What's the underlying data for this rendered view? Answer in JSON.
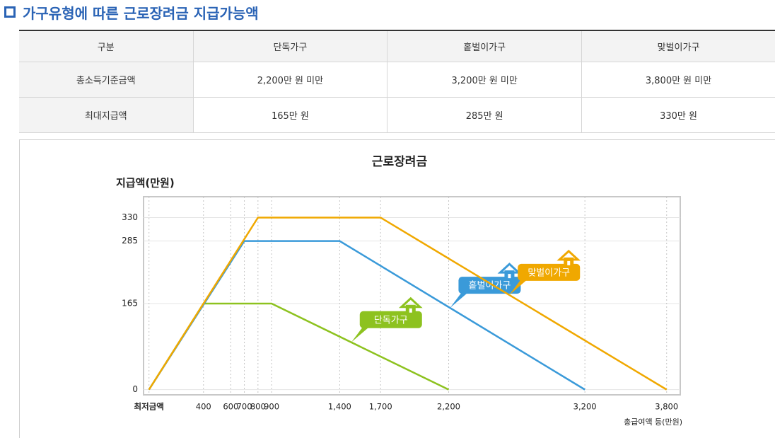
{
  "header": {
    "title": "가구유형에 따른 근로장려금 지급가능액"
  },
  "table": {
    "columns": [
      "구분",
      "단독가구",
      "홑벌이가구",
      "맞벌이가구"
    ],
    "rows": [
      [
        "총소득기준금액",
        "2,200만 원 미만",
        "3,200만 원 미만",
        "3,800만 원 미만"
      ],
      [
        "최대지급액",
        "165만 원",
        "285만 원",
        "330만 원"
      ]
    ]
  },
  "chart_data": {
    "type": "line",
    "title": "근로장려금",
    "y_label": "지급액(만원)",
    "x_label": "총급여액 등(만원)",
    "xlim": [
      -40,
      3900
    ],
    "ylim": [
      -10,
      370
    ],
    "xticks": [
      {
        "value": 0,
        "label": "최저금액"
      },
      400,
      600,
      700,
      800,
      900,
      {
        "value": 1400,
        "label": "1,400"
      },
      {
        "value": 1700,
        "label": "1,700"
      },
      {
        "value": 2200,
        "label": "2,200"
      },
      {
        "value": 3200,
        "label": "3,200"
      },
      {
        "value": 3800,
        "label": "3,800"
      }
    ],
    "yticks": [
      0,
      165,
      285,
      330
    ],
    "series": [
      {
        "name": "단독가구",
        "color": "#8dc21f",
        "x": [
          0,
          400,
          900,
          2200
        ],
        "values": [
          0,
          165,
          165,
          0
        ]
      },
      {
        "name": "홑벌이가구",
        "color": "#3a9ad9",
        "x": [
          0,
          700,
          1400,
          3200
        ],
        "values": [
          0,
          285,
          285,
          0
        ]
      },
      {
        "name": "맞벌이가구",
        "color": "#f0a800",
        "x": [
          0,
          800,
          1700,
          3800
        ],
        "values": [
          0,
          330,
          330,
          0
        ]
      }
    ]
  }
}
